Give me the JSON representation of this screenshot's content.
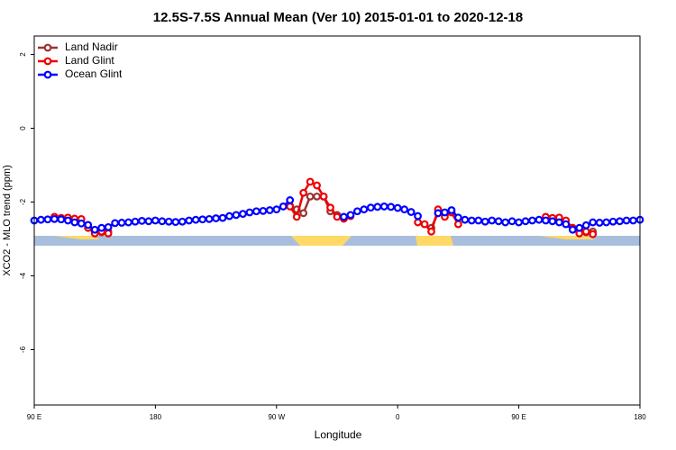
{
  "chart_data": {
    "type": "line",
    "title": "12.5S-7.5S Annual Mean (Ver 10)   2015-01-01 to 2020-12-18",
    "xlabel": "Longitude",
    "ylabel": "XCO2 - MLO trend (ppm)",
    "x": [
      90,
      95,
      100,
      105,
      110,
      115,
      120,
      125,
      130,
      135,
      140,
      145,
      150,
      155,
      160,
      165,
      170,
      175,
      180,
      185,
      190,
      195,
      200,
      205,
      210,
      215,
      220,
      225,
      230,
      235,
      240,
      245,
      250,
      255,
      260,
      265,
      270,
      275,
      280,
      285,
      290,
      295,
      300,
      305,
      310,
      315,
      320,
      325,
      330,
      335,
      340,
      345,
      350,
      355,
      360,
      365,
      370,
      375,
      380,
      385,
      390,
      395,
      400,
      405,
      410,
      415,
      420,
      425,
      430,
      435,
      440,
      445,
      450,
      455,
      460,
      465,
      470,
      475,
      480,
      485,
      490,
      495,
      500,
      505,
      510,
      515,
      520,
      525,
      530,
      535,
      540
    ],
    "xlim": [
      90,
      540
    ],
    "xticks": [
      {
        "value": 90,
        "label": "90 E"
      },
      {
        "value": 180,
        "label": "180"
      },
      {
        "value": 270,
        "label": "90 W"
      },
      {
        "value": 360,
        "label": "0"
      },
      {
        "value": 450,
        "label": "90 E"
      },
      {
        "value": 540,
        "label": "180"
      }
    ],
    "ylim": [
      -7.5,
      2.5
    ],
    "yticks": [
      2,
      0,
      -2,
      -4,
      -6
    ],
    "legend": "top-left",
    "series": [
      {
        "name": "Land Nadir",
        "color": "#993333",
        "values": [
          null,
          null,
          null,
          null,
          null,
          null,
          null,
          null,
          -2.7,
          -2.8,
          -2.82,
          -2.8,
          null,
          null,
          null,
          null,
          null,
          null,
          null,
          null,
          null,
          null,
          null,
          null,
          null,
          null,
          null,
          null,
          null,
          null,
          null,
          null,
          null,
          null,
          null,
          null,
          null,
          null,
          -2.1,
          -2.2,
          -2.3,
          -1.85,
          -1.85,
          -1.85,
          -2.25,
          -2.35,
          -2.45,
          null,
          null,
          null,
          null,
          null,
          null,
          null,
          null,
          null,
          null,
          null,
          null,
          -2.7,
          -2.3,
          -2.3,
          -2.25,
          null,
          null,
          null,
          null,
          null,
          null,
          null,
          null,
          null,
          null,
          null,
          null,
          null,
          null,
          null,
          null,
          null,
          -2.7,
          -2.8,
          -2.82,
          -2.8,
          null,
          null,
          null,
          null,
          null,
          null,
          null
        ]
      },
      {
        "name": "Land Glint",
        "color": "#ee0000",
        "values": [
          null,
          null,
          null,
          -2.4,
          -2.43,
          -2.42,
          -2.45,
          -2.46,
          -2.7,
          -2.85,
          -2.8,
          -2.85,
          null,
          null,
          null,
          null,
          null,
          null,
          null,
          null,
          null,
          null,
          null,
          null,
          null,
          null,
          null,
          null,
          null,
          null,
          null,
          null,
          null,
          null,
          null,
          null,
          null,
          null,
          -2.12,
          -2.4,
          -1.75,
          -1.45,
          -1.55,
          -1.85,
          -2.15,
          -2.4,
          -2.45,
          -2.38,
          null,
          null,
          null,
          null,
          null,
          null,
          null,
          null,
          null,
          -2.55,
          -2.6,
          -2.8,
          -2.2,
          -2.4,
          -2.28,
          -2.6,
          null,
          null,
          null,
          null,
          null,
          null,
          null,
          null,
          null,
          null,
          null,
          null,
          -2.4,
          -2.43,
          -2.42,
          -2.5,
          -2.7,
          -2.85,
          -2.8,
          -2.87,
          null,
          null,
          null,
          null,
          null,
          null,
          null
        ]
      },
      {
        "name": "Ocean Glint",
        "color": "#0000ff",
        "values": [
          -2.5,
          -2.48,
          -2.47,
          -2.46,
          -2.47,
          -2.5,
          -2.55,
          -2.58,
          -2.62,
          -2.75,
          -2.7,
          -2.68,
          -2.57,
          -2.56,
          -2.55,
          -2.53,
          -2.51,
          -2.52,
          -2.5,
          -2.52,
          -2.53,
          -2.54,
          -2.53,
          -2.5,
          -2.48,
          -2.47,
          -2.46,
          -2.44,
          -2.43,
          -2.38,
          -2.35,
          -2.32,
          -2.28,
          -2.25,
          -2.24,
          -2.22,
          -2.2,
          -2.12,
          -1.95,
          null,
          null,
          null,
          null,
          null,
          null,
          null,
          -2.4,
          -2.35,
          -2.25,
          -2.2,
          -2.15,
          -2.13,
          -2.12,
          -2.13,
          -2.16,
          -2.2,
          -2.27,
          -2.38,
          null,
          null,
          -2.3,
          -2.28,
          -2.22,
          -2.42,
          -2.48,
          -2.5,
          -2.5,
          -2.53,
          -2.5,
          -2.52,
          -2.55,
          -2.52,
          -2.55,
          -2.52,
          -2.5,
          -2.48,
          -2.5,
          -2.52,
          -2.55,
          -2.6,
          -2.75,
          -2.7,
          -2.63,
          -2.55,
          -2.56,
          -2.55,
          -2.53,
          -2.52,
          -2.5,
          -2.5,
          -2.48
        ]
      }
    ]
  }
}
